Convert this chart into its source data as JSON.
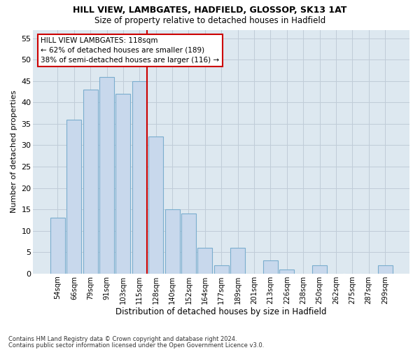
{
  "title1": "HILL VIEW, LAMBGATES, HADFIELD, GLOSSOP, SK13 1AT",
  "title2": "Size of property relative to detached houses in Hadfield",
  "xlabel": "Distribution of detached houses by size in Hadfield",
  "ylabel": "Number of detached properties",
  "footnote1": "Contains HM Land Registry data © Crown copyright and database right 2024.",
  "footnote2": "Contains public sector information licensed under the Open Government Licence v3.0.",
  "annotation_line1": "HILL VIEW LAMBGATES: 118sqm",
  "annotation_line2": "← 62% of detached houses are smaller (189)",
  "annotation_line3": "38% of semi-detached houses are larger (116) →",
  "bar_labels": [
    "54sqm",
    "66sqm",
    "79sqm",
    "91sqm",
    "103sqm",
    "115sqm",
    "128sqm",
    "140sqm",
    "152sqm",
    "164sqm",
    "177sqm",
    "189sqm",
    "201sqm",
    "213sqm",
    "226sqm",
    "238sqm",
    "250sqm",
    "262sqm",
    "275sqm",
    "287sqm",
    "299sqm"
  ],
  "bar_values": [
    13,
    36,
    43,
    46,
    42,
    45,
    32,
    15,
    14,
    6,
    2,
    6,
    0,
    3,
    1,
    0,
    2,
    0,
    0,
    0,
    2
  ],
  "bar_color": "#c8d8ec",
  "bar_edge_color": "#7aadce",
  "vline_color": "#cc0000",
  "vline_index": 5,
  "annotation_box_edge_color": "#cc0000",
  "annotation_box_facecolor": "#ffffff",
  "grid_color": "#c0ccd8",
  "background_color": "#dde8f0",
  "ylim_max": 57,
  "yticks": [
    0,
    5,
    10,
    15,
    20,
    25,
    30,
    35,
    40,
    45,
    50,
    55
  ]
}
